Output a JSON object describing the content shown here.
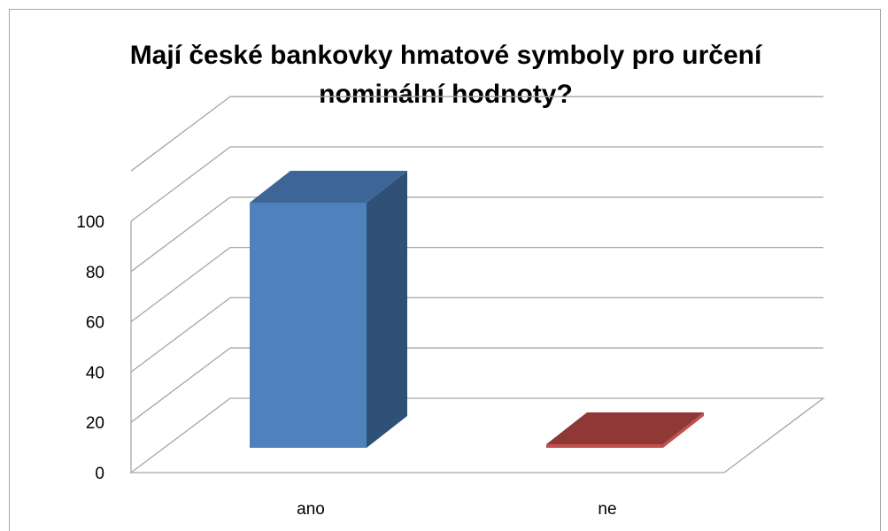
{
  "chart_data": {
    "type": "bar",
    "title": "Mají české bankovky hmatové symboly pro určení\nnominální hodnoty?",
    "categories": [
      "ano",
      "ne"
    ],
    "values": [
      100,
      0
    ],
    "ylim": [
      0,
      100
    ],
    "yticks": [
      0,
      20,
      40,
      60,
      80,
      100
    ],
    "grid": true,
    "legend": "none",
    "colors": {
      "ano_front": "#4f81bd",
      "ano_side": "#2f5178",
      "ano_top": "#3d6595",
      "ne_front": "#c0504d",
      "ne_top": "#8f3836",
      "grid": "#a6a6a6"
    }
  }
}
